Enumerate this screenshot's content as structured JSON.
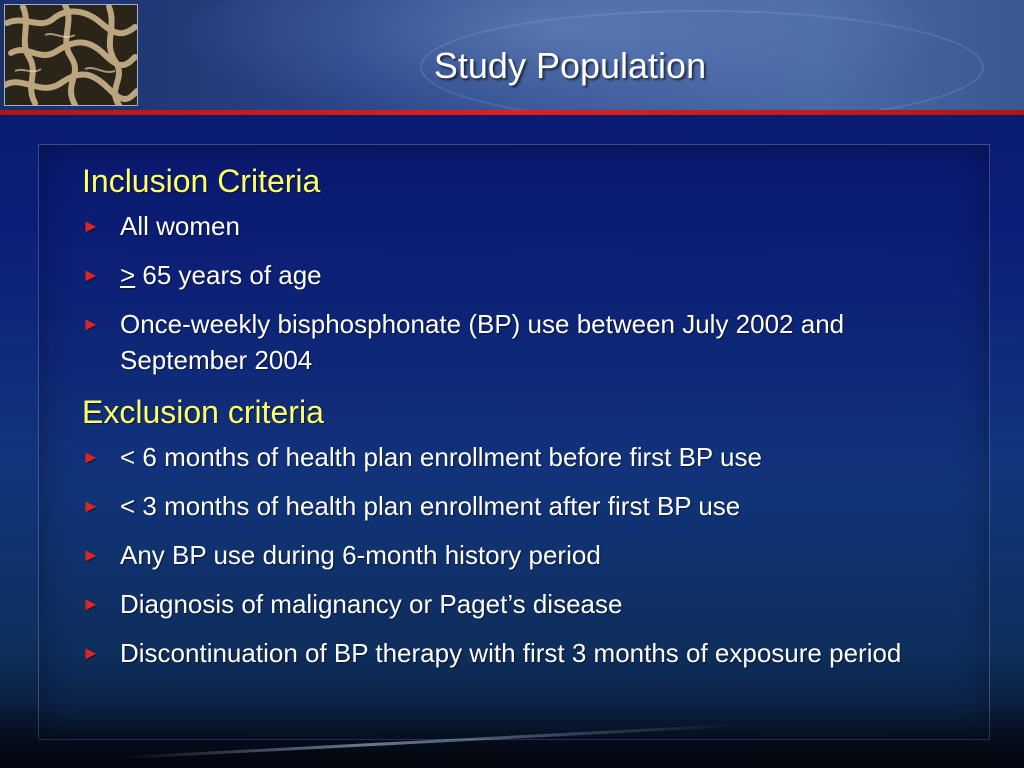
{
  "title": "Study Population",
  "inclusion": {
    "heading": "Inclusion Criteria",
    "items": [
      {
        "text": "All women"
      },
      {
        "symbol": ">",
        "text": " 65 years of age"
      },
      {
        "text": "Once-weekly bisphosphonate (BP) use between July 2002 and September 2004"
      }
    ]
  },
  "exclusion": {
    "heading": "Exclusion criteria",
    "items": [
      {
        "text": "< 6 months of health plan enrollment before first BP use"
      },
      {
        "text": "< 3 months of health plan enrollment after first BP use"
      },
      {
        "text": "Any BP use during 6-month history period"
      },
      {
        "text": "Diagnosis of malignancy or Paget’s disease"
      },
      {
        "text": "Discontinuation of BP therapy with first 3 months of exposure period"
      }
    ]
  },
  "bullet_glyph": "►",
  "colors": {
    "heading": "#ffff66",
    "bullet": "#e02424",
    "accent_line": "#e02020",
    "text": "#ffffff"
  },
  "icons": {
    "thumbnail": "bone-structure-image"
  }
}
